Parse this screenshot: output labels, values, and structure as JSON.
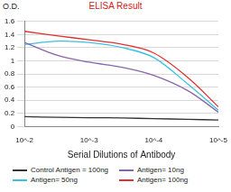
{
  "chart_data": {
    "type": "line",
    "title": "ELISA Result",
    "y_label": "O.D.",
    "x_label": "Serial Dilutions of Antibody",
    "log": "x",
    "x": [
      0.01,
      0.003,
      0.001,
      0.0003,
      0.0001,
      3e-05,
      1e-05
    ],
    "series": [
      {
        "name": "Control Antigen = 100ng",
        "color": "#333333",
        "values": [
          0.15,
          0.14,
          0.135,
          0.13,
          0.12,
          0.11,
          0.1
        ]
      },
      {
        "name": "Antigen= 10ng",
        "color": "#8a64a8",
        "values": [
          1.28,
          1.08,
          0.98,
          0.9,
          0.78,
          0.55,
          0.22
        ]
      },
      {
        "name": "Antigen= 50ng",
        "color": "#3cc0e0",
        "values": [
          1.25,
          1.3,
          1.28,
          1.2,
          1.05,
          0.65,
          0.25
        ]
      },
      {
        "name": "Antigen= 100ng",
        "color": "#e03030",
        "values": [
          1.45,
          1.38,
          1.32,
          1.25,
          1.12,
          0.75,
          0.3
        ]
      }
    ],
    "xlim": [
      0.01,
      1e-05
    ],
    "xticks": [
      {
        "value": 0.01,
        "label": "10^-2"
      },
      {
        "value": 0.001,
        "label": "10^-3"
      },
      {
        "value": 0.0001,
        "label": "10^-4"
      },
      {
        "value": 1e-05,
        "label": "10^-5"
      }
    ],
    "ylim": [
      0,
      1.6
    ],
    "yticks": [
      0,
      0.2,
      0.4,
      0.6,
      0.8,
      1,
      1.2,
      1.4,
      1.6
    ],
    "grid": true,
    "legend": "bottom"
  }
}
